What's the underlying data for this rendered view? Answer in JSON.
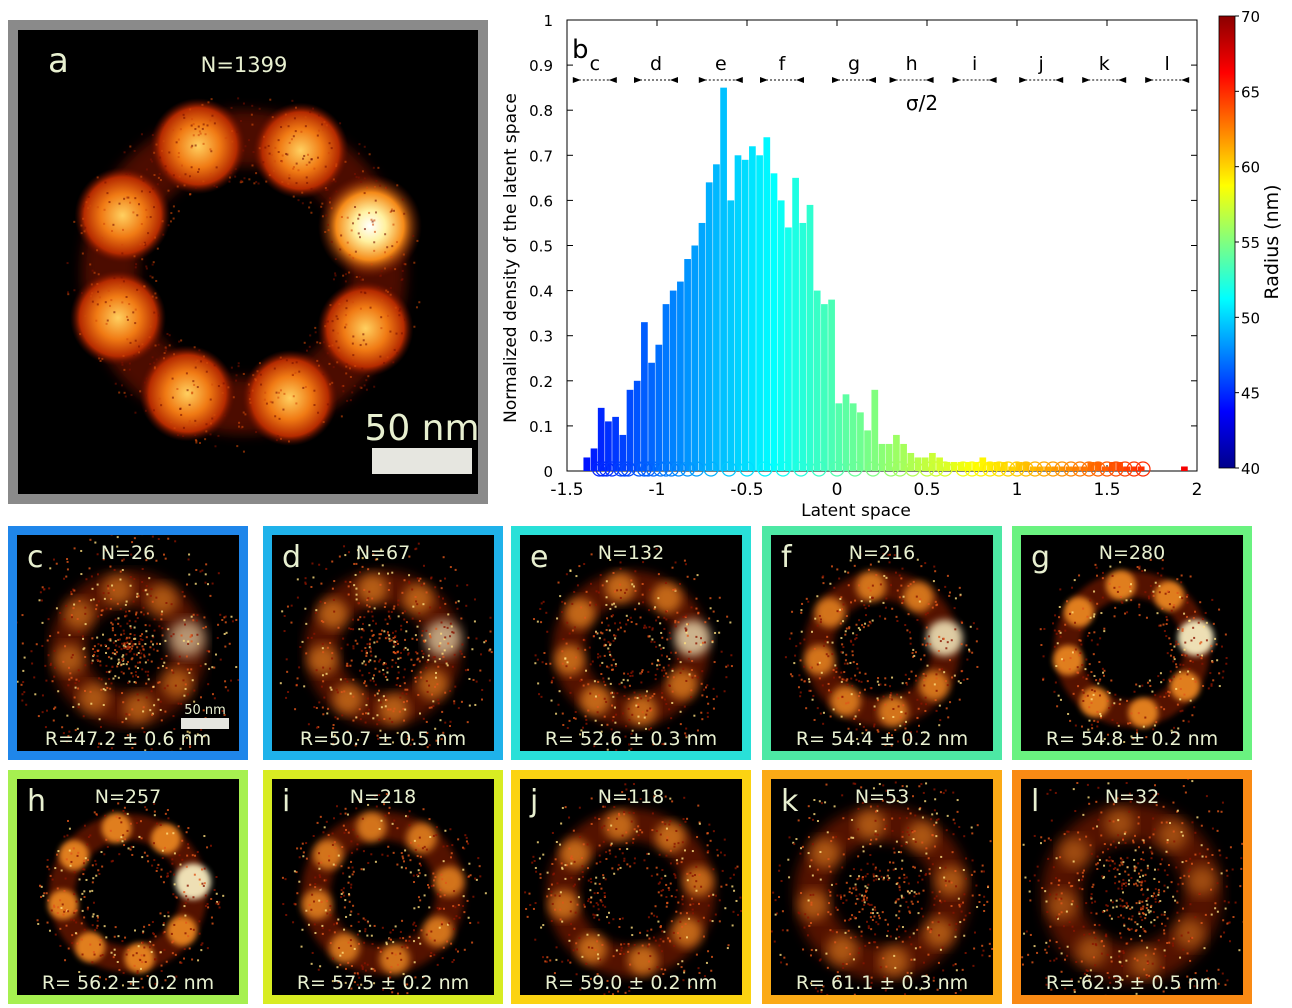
{
  "panel_a": {
    "letter": "a",
    "count": "N=1399",
    "scalebar_label": "50 nm",
    "ring": {
      "blobs": 8,
      "bright_blob_index": 1
    }
  },
  "chart_data": {
    "type": "bar",
    "panel_letter": "b",
    "xlabel": "Latent space",
    "ylabel": "Normalized density of the latent space",
    "xlim": [
      -1.5,
      2
    ],
    "ylim": [
      0,
      1
    ],
    "x_ticks": [
      -1.5,
      -1,
      -0.5,
      0,
      0.5,
      1,
      1.5,
      2
    ],
    "y_ticks": [
      0,
      0.1,
      0.2,
      0.3,
      0.4,
      0.5,
      0.6,
      0.7,
      0.8,
      0.9,
      1
    ],
    "bar_width": 0.06,
    "x": [
      -1.39,
      -1.35,
      -1.31,
      -1.27,
      -1.23,
      -1.19,
      -1.15,
      -1.11,
      -1.07,
      -1.03,
      -0.99,
      -0.95,
      -0.91,
      -0.87,
      -0.83,
      -0.79,
      -0.75,
      -0.71,
      -0.67,
      -0.63,
      -0.59,
      -0.55,
      -0.51,
      -0.47,
      -0.43,
      -0.39,
      -0.35,
      -0.31,
      -0.27,
      -0.23,
      -0.19,
      -0.15,
      -0.11,
      -0.07,
      -0.03,
      0.01,
      0.05,
      0.09,
      0.13,
      0.17,
      0.21,
      0.25,
      0.29,
      0.33,
      0.37,
      0.41,
      0.45,
      0.49,
      0.53,
      0.57,
      0.61,
      0.65,
      0.69,
      0.73,
      0.77,
      0.81,
      0.85,
      0.89,
      0.93,
      0.97,
      1.01,
      1.05,
      1.09,
      1.13,
      1.17,
      1.21,
      1.25,
      1.29,
      1.33,
      1.37,
      1.41,
      1.45,
      1.49,
      1.53,
      1.57,
      1.61,
      1.65,
      1.69,
      1.73,
      1.77,
      1.81,
      1.85,
      1.89,
      1.93
    ],
    "values": [
      0.03,
      0.05,
      0.14,
      0.11,
      0.12,
      0.08,
      0.18,
      0.2,
      0.33,
      0.24,
      0.28,
      0.37,
      0.4,
      0.42,
      0.47,
      0.5,
      0.55,
      0.64,
      0.68,
      0.85,
      0.6,
      0.7,
      0.69,
      0.72,
      0.7,
      0.74,
      0.66,
      0.6,
      0.54,
      0.65,
      0.55,
      0.59,
      0.4,
      0.37,
      0.38,
      0.15,
      0.17,
      0.15,
      0.13,
      0.09,
      0.18,
      0.06,
      0.06,
      0.08,
      0.06,
      0.04,
      0.03,
      0.03,
      0.04,
      0.03,
      0.02,
      0.02,
      0.02,
      0.02,
      0.02,
      0.03,
      0.02,
      0.02,
      0.02,
      0.01,
      0.02,
      0.02,
      0.01,
      0.01,
      0.01,
      0.01,
      0.01,
      0.01,
      0.01,
      0.01,
      0.02,
      0.02,
      0.01,
      0.02,
      0.02,
      0.01,
      0.01,
      0.01,
      0.0,
      0.0,
      0.0,
      0.0,
      0.0,
      0.01
    ],
    "marker_x": [
      -1.32,
      -1.3,
      -1.28,
      -1.25,
      -1.2,
      -1.18,
      -1.16,
      -1.1,
      -1.07,
      -1.05,
      -1.02,
      -0.98,
      -0.95,
      -0.92,
      -0.88,
      -0.83,
      -0.78,
      -0.7,
      -0.6,
      -0.5,
      -0.4,
      -0.3,
      -0.2,
      -0.1,
      0,
      0.1,
      0.2,
      0.3,
      0.35,
      0.42,
      0.5,
      0.55,
      0.6,
      0.7,
      0.75,
      0.8,
      0.85,
      0.9,
      0.95,
      1.0,
      1.05,
      1.1,
      1.15,
      1.2,
      1.25,
      1.3,
      1.35,
      1.4,
      1.45,
      1.5,
      1.55,
      1.6,
      1.65,
      1.7
    ],
    "latent_regions": [
      {
        "label": "c",
        "x": -1.39
      },
      {
        "label": "d",
        "x": -1.05
      },
      {
        "label": "e",
        "x": -0.69
      },
      {
        "label": "f",
        "x": -0.35
      },
      {
        "label": "g",
        "x": 0.05
      },
      {
        "label": "h",
        "x": 0.37
      },
      {
        "label": "i",
        "x": 0.72
      },
      {
        "label": "j",
        "x": 1.09
      },
      {
        "label": "k",
        "x": 1.44
      },
      {
        "label": "l",
        "x": 1.79
      }
    ],
    "sigma_label": "σ/2",
    "colorbar": {
      "label": "Radius (nm)",
      "range": [
        40,
        70
      ],
      "ticks": [
        40,
        45,
        50,
        55,
        60,
        65,
        70
      ],
      "stops": [
        "#00008b",
        "#0000ff",
        "#0080ff",
        "#00ffff",
        "#80ff80",
        "#ffff00",
        "#ff8000",
        "#ff0000",
        "#8b0000"
      ]
    }
  },
  "panels": [
    {
      "letter": "c",
      "count": "N=26",
      "radius": "R=47.2 ± 0.6 nm",
      "frame": "#1f86ea",
      "sharp": 0.4,
      "noise": 0.55,
      "bright": true,
      "scalebar": "50 nm"
    },
    {
      "letter": "d",
      "count": "N=67",
      "radius": "R=50.7 ± 0.5 nm",
      "frame": "#1fb2ea",
      "sharp": 0.5,
      "noise": 0.45,
      "bright": true,
      "scalebar": ""
    },
    {
      "letter": "e",
      "count": "N=132",
      "radius": "R= 52.6 ± 0.3 nm",
      "frame": "#29e0d8",
      "sharp": 0.65,
      "noise": 0.32,
      "bright": true,
      "scalebar": ""
    },
    {
      "letter": "f",
      "count": "N=216",
      "radius": "R= 54.4 ± 0.2 nm",
      "frame": "#4de8a4",
      "sharp": 0.85,
      "noise": 0.22,
      "bright": true,
      "scalebar": ""
    },
    {
      "letter": "g",
      "count": "N=280",
      "radius": "R= 54.8 ± 0.2 nm",
      "frame": "#6af280",
      "sharp": 1.0,
      "noise": 0.15,
      "bright": true,
      "scalebar": ""
    },
    {
      "letter": "h",
      "count": "N=257",
      "radius": "R= 56.2 ± 0.2 nm",
      "frame": "#a6f050",
      "sharp": 1.0,
      "noise": 0.15,
      "bright": true,
      "scalebar": ""
    },
    {
      "letter": "i",
      "count": "N=218",
      "radius": "R= 57.5 ± 0.2 nm",
      "frame": "#d8ec22",
      "sharp": 0.85,
      "noise": 0.22,
      "bright": false,
      "scalebar": ""
    },
    {
      "letter": "j",
      "count": "N=118",
      "radius": "R= 59.0 ± 0.2 nm",
      "frame": "#fbd312",
      "sharp": 0.65,
      "noise": 0.32,
      "bright": false,
      "scalebar": ""
    },
    {
      "letter": "k",
      "count": "N=53",
      "radius": "R= 61.1 ± 0.3 nm",
      "frame": "#fbaa16",
      "sharp": 0.4,
      "noise": 0.5,
      "bright": false,
      "scalebar": ""
    },
    {
      "letter": "l",
      "count": "N=32",
      "radius": "R= 62.3 ± 0.5 nm",
      "frame": "#f98a14",
      "sharp": 0.25,
      "noise": 0.6,
      "bright": false,
      "scalebar": ""
    }
  ]
}
